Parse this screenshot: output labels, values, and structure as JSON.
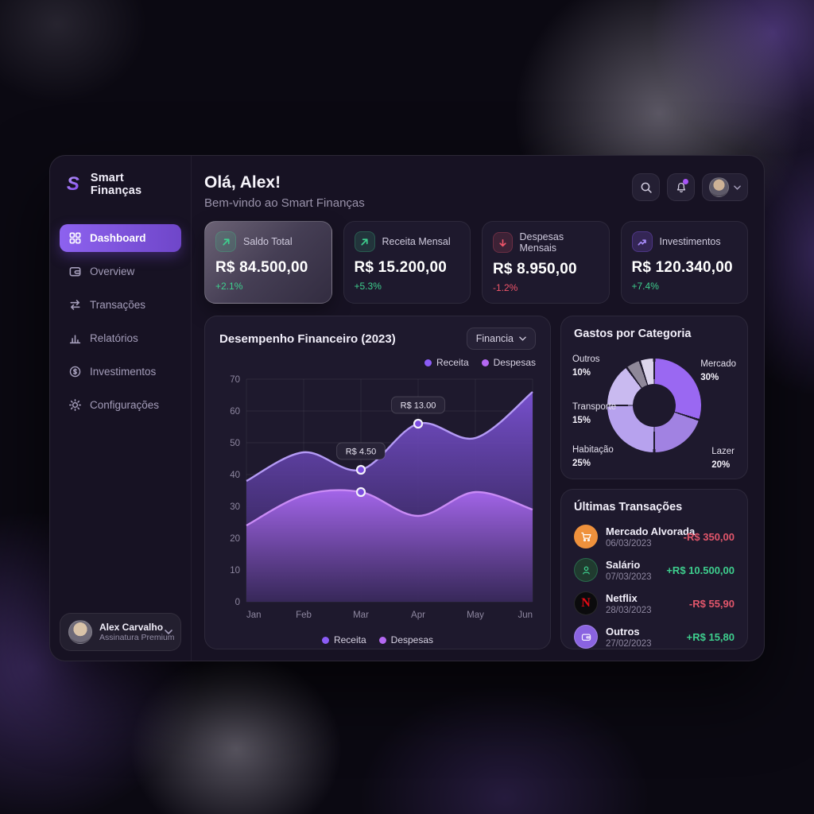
{
  "app": {
    "name": "Smart Finanças"
  },
  "sidebar": {
    "logo_letter": "S",
    "logo_text": "Smart Finanças",
    "items": [
      {
        "label": "Dashboard",
        "active": true
      },
      {
        "label": "Overview",
        "active": false
      },
      {
        "label": "Transações",
        "active": false
      },
      {
        "label": "Relatórios",
        "active": false
      },
      {
        "label": "Investimentos",
        "active": false
      },
      {
        "label": "Configurações",
        "active": false
      }
    ],
    "user": {
      "name": "Alex Carvalho",
      "subtitle": "Assinatura Premium"
    }
  },
  "header": {
    "greeting": "Olá, Alex!",
    "subtitle": "Bem-vindo ao Smart Finanças",
    "icons": [
      "search-icon",
      "bell-icon",
      "avatar-menu"
    ]
  },
  "stats": [
    {
      "label": "Saldo Total",
      "value": "R$ 84.500,00",
      "delta": "+2.1%",
      "trend": "up",
      "icon": "arrow-up-right",
      "highlighted": true
    },
    {
      "label": "Receita Mensal",
      "value": "R$ 15.200,00",
      "delta": "+5.3%",
      "trend": "up",
      "icon": "arrow-up-right",
      "highlighted": false
    },
    {
      "label": "Despesas Mensais",
      "value": "R$ 8.950,00",
      "delta": "-1.2%",
      "trend": "down",
      "icon": "arrow-down",
      "highlighted": false
    },
    {
      "label": "Investimentos",
      "value": "R$ 120.340,00",
      "delta": "+7.4%",
      "trend": "up",
      "icon": "trending-up",
      "highlighted": false
    }
  ],
  "performance": {
    "title": "Desempenho Financeiro (2023)",
    "filter_label": "Financia"
  },
  "categories_card": {
    "title": "Gastos por Categoria"
  },
  "transactions": {
    "title": "Últimas Transações",
    "items": [
      {
        "name": "Mercado Alvorada",
        "date": "06/03/2023",
        "amount": "-R$ 350,00",
        "direction": "negative",
        "icon": "cart-icon"
      },
      {
        "name": "Salário",
        "date": "07/03/2023",
        "amount": "+R$ 10.500,00",
        "direction": "positive",
        "icon": "person-icon"
      },
      {
        "name": "Netflix",
        "date": "28/03/2023",
        "amount": "-R$ 55,90",
        "direction": "negative",
        "icon": "netflix-icon"
      },
      {
        "name": "Outros",
        "date": "27/02/2023",
        "amount": "+R$ 15,80",
        "direction": "positive",
        "icon": "wallet-icon"
      }
    ]
  },
  "chart_data": [
    {
      "type": "area",
      "title": "Desempenho Financeiro (2023)",
      "x": [
        "Jan",
        "Feb",
        "Mar",
        "Apr",
        "May",
        "Jun"
      ],
      "ylim": [
        0,
        70
      ],
      "yticks": [
        0,
        10,
        20,
        30,
        40,
        50,
        60,
        70
      ],
      "grid": true,
      "legend_position": "top-right and bottom-center",
      "series": [
        {
          "name": "Receita",
          "color": "#8b5cf6",
          "stroke": "#b49af5",
          "fill_top": "#7b52d4",
          "fill_bottom": "#261c42",
          "values": [
            38,
            47,
            41.5,
            56,
            51.5,
            66
          ]
        },
        {
          "name": "Despesas",
          "color": "#b468f2",
          "stroke": "#c98bf5",
          "fill_top": "#a868ef",
          "fill_bottom": "#3c2b60",
          "values": [
            24,
            33.5,
            34.5,
            27,
            34.5,
            29
          ]
        }
      ],
      "annotations": [
        {
          "series": 0,
          "index": 2,
          "label": "R$ 4.50"
        },
        {
          "series": 0,
          "index": 3,
          "label": "R$ 13.00"
        },
        {
          "series": 1,
          "index": 2,
          "label": null
        }
      ]
    },
    {
      "type": "donut",
      "title": "Gastos por Categoria",
      "start_angle_deg": 0,
      "slices": [
        {
          "label": "Mercado",
          "value": 30,
          "pct": "30%",
          "color": "#9a68f2"
        },
        {
          "label": "Lazer",
          "value": 20,
          "pct": "20%",
          "color": "#a182e2"
        },
        {
          "label": "Habitação",
          "value": 25,
          "pct": "25%",
          "color": "#b7a2ee"
        },
        {
          "label": "Transporte",
          "value": 15,
          "pct": "15%",
          "color": "#c9baf0"
        },
        {
          "label": "Outros",
          "value": 10,
          "pct": "10%",
          "color": "#8f8899",
          "color2": "#dcd5ec"
        }
      ]
    }
  ],
  "colors": {
    "accent": "#8b5cf6",
    "positive": "#3ecf8e",
    "negative": "#f0556a",
    "card_bg": "#1e192d"
  }
}
